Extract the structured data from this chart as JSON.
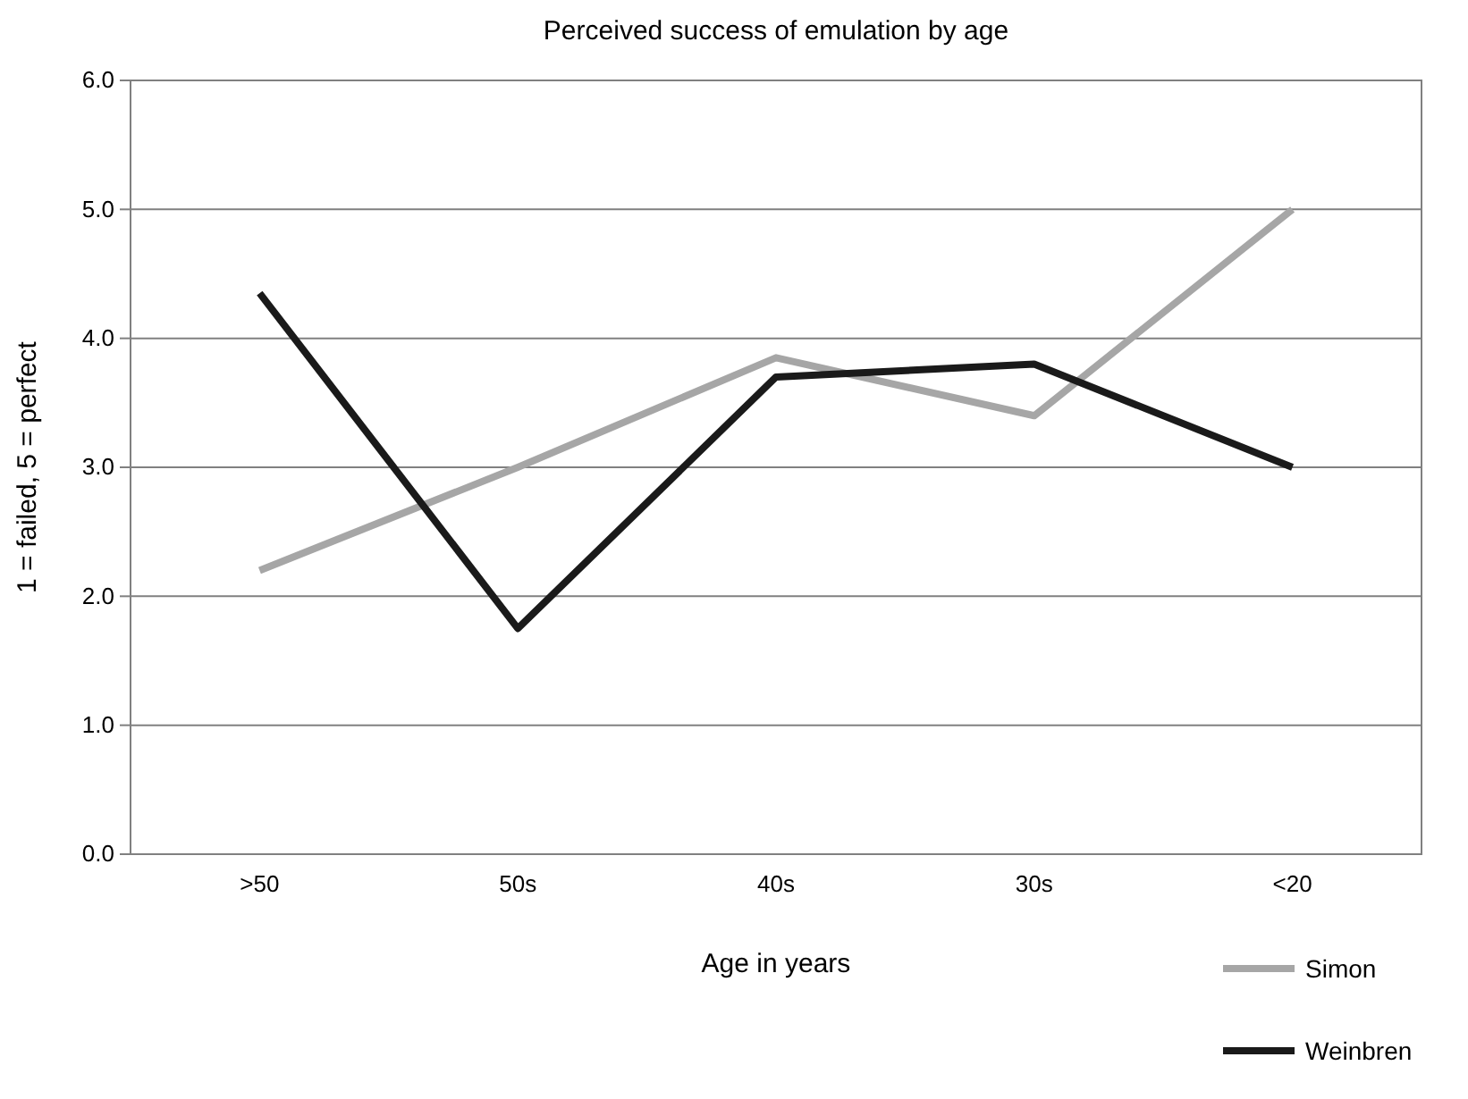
{
  "chart_data": {
    "type": "line",
    "title": "Perceived success of emulation by age",
    "xlabel": "Age in years",
    "ylabel": "1 = failed, 5 = perfect",
    "categories": [
      ">50",
      "50s",
      "40s",
      "30s",
      "<20"
    ],
    "series": [
      {
        "name": "Simon",
        "color": "#a6a6a6",
        "values": [
          2.2,
          3.0,
          3.85,
          3.4,
          5.0
        ]
      },
      {
        "name": "Weinbren",
        "color": "#1a1a1a",
        "values": [
          4.35,
          1.75,
          3.7,
          3.8,
          3.0
        ]
      }
    ],
    "ylim": [
      0,
      6
    ],
    "yticks": [
      {
        "value": 0,
        "label": "0.0"
      },
      {
        "value": 1,
        "label": "1.0"
      },
      {
        "value": 2,
        "label": "2.0"
      },
      {
        "value": 3,
        "label": "3.0"
      },
      {
        "value": 4,
        "label": "4.0"
      },
      {
        "value": 5,
        "label": "5.0"
      },
      {
        "value": 6,
        "label": "6.0"
      }
    ],
    "grid": "y",
    "legend": "bottom right",
    "marker": "none",
    "line_style": "solid"
  }
}
